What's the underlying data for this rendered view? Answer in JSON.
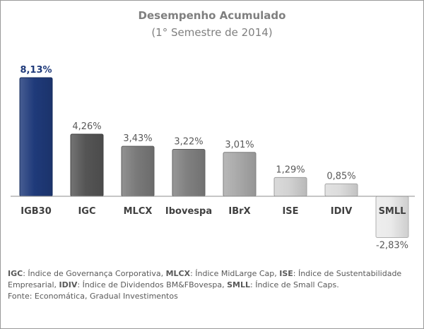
{
  "chart_data": {
    "type": "bar",
    "title": "Desempenho Acumulado",
    "subtitle": "(1° Semestre de 2014)",
    "categories": [
      "IGB30",
      "IGC",
      "MLCX",
      "Ibovespa",
      "IBrX",
      "ISE",
      "IDIV",
      "SMLL"
    ],
    "values": [
      8.13,
      4.26,
      3.43,
      3.22,
      3.01,
      1.29,
      0.85,
      -2.83
    ],
    "value_labels": [
      "8,13%",
      "4,26%",
      "3,43%",
      "3,22%",
      "3,01%",
      "1,29%",
      "0,85%",
      "-2,83%"
    ],
    "colors": [
      "#1f3a7a",
      "#555555",
      "#7a7a7a",
      "#808080",
      "#a9a9a9",
      "#d2d2d2",
      "#dcdcdc",
      "#eaeaea"
    ],
    "ylim": [
      -3.2,
      9
    ],
    "grid": false,
    "legend": "none"
  },
  "notes": {
    "line1": [
      {
        "abbr": "IGC",
        "text": ": Índice de Governança Corporativa,  "
      },
      {
        "abbr": "MLCX",
        "text": ": Índice MidLarge Cap,  "
      },
      {
        "abbr": "ISE",
        "text": ": Índice de Sustentabilidade"
      }
    ],
    "line2": [
      {
        "abbr": "",
        "text": "Empresarial, "
      },
      {
        "abbr": "IDIV",
        "text": ": Índice de Dividendos BM&FBovespa, "
      },
      {
        "abbr": "SMLL",
        "text": ": Índice de Small Caps."
      }
    ],
    "source": "Fonte: Economática, Gradual Investimentos"
  }
}
